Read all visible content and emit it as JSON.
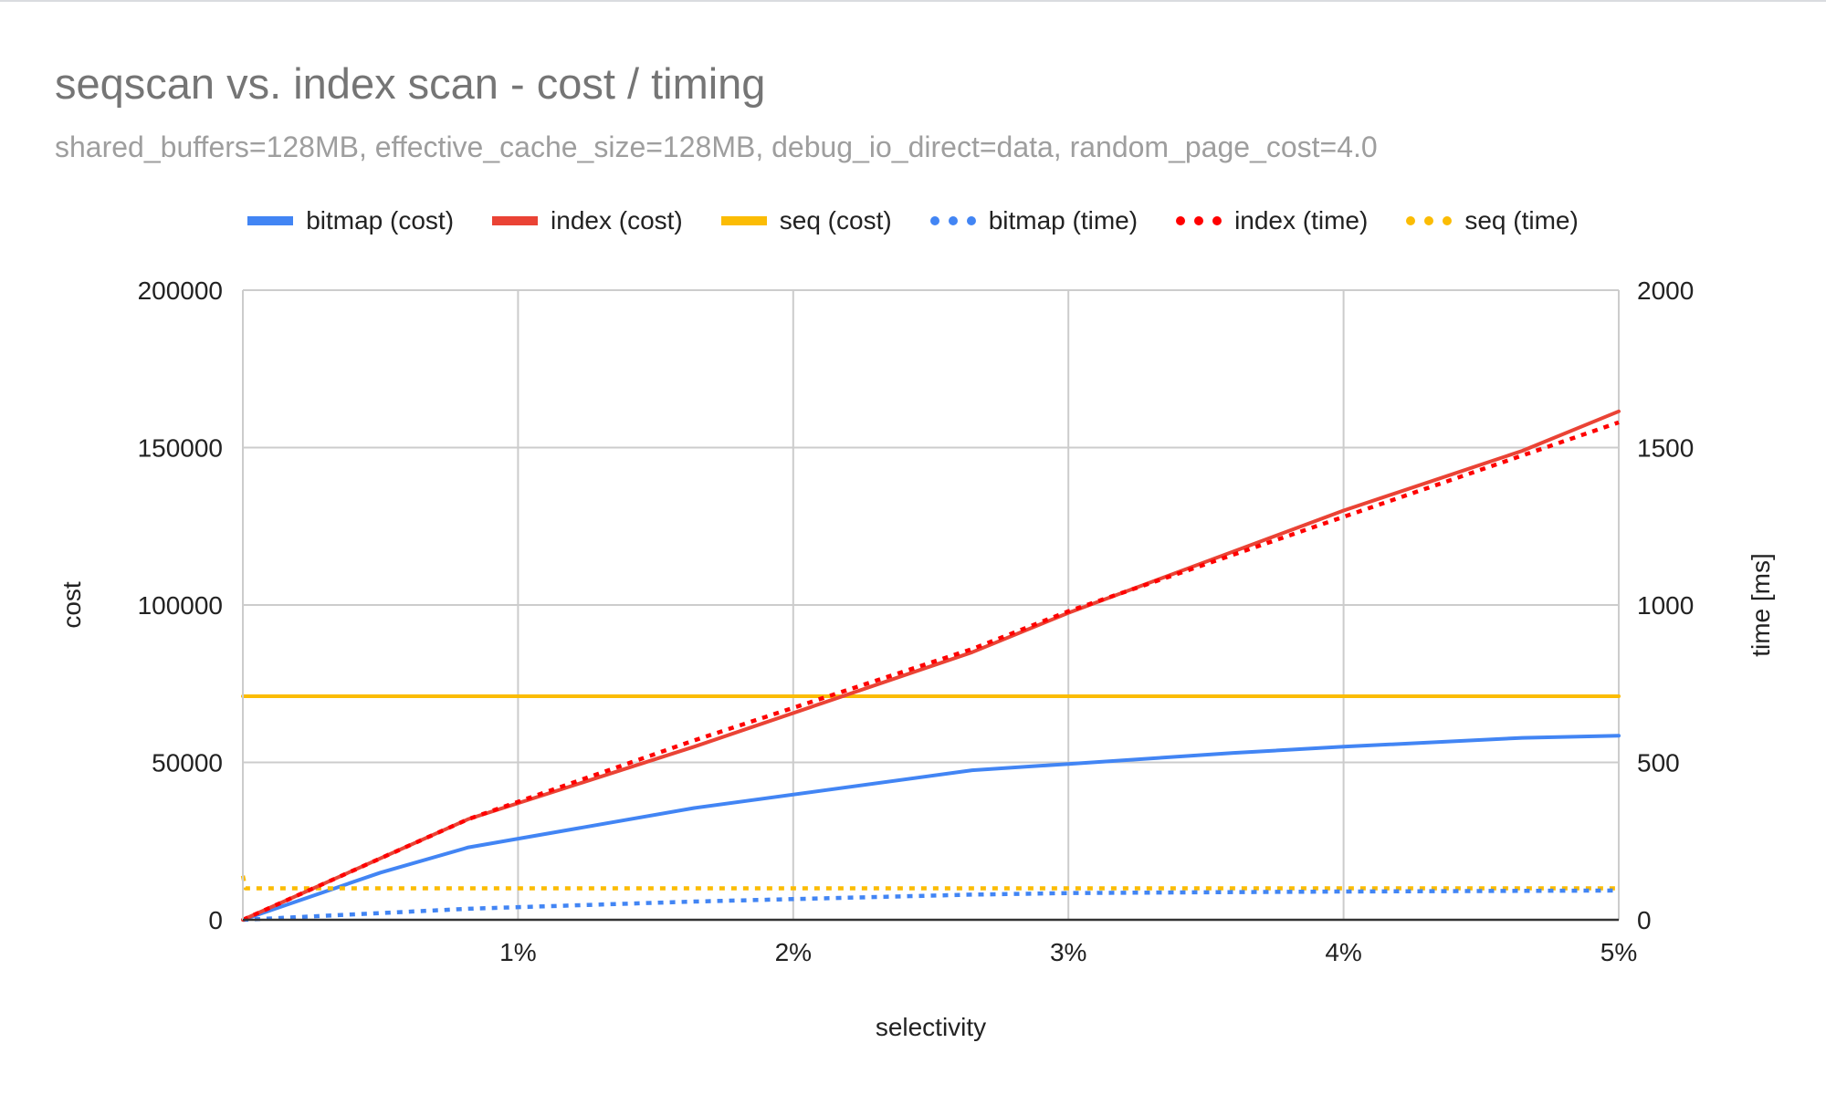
{
  "chart_data": {
    "type": "line",
    "title": "seqscan vs. index scan - cost / timing",
    "subtitle": "shared_buffers=128MB, effective_cache_size=128MB, debug_io_direct=data, random_page_cost=4.0",
    "xlabel": "selectivity",
    "ylabel": "cost",
    "y2label": "time [ms]",
    "legend_position": "top",
    "grid": true,
    "x_ticks": [
      {
        "value": 1,
        "label": "1%"
      },
      {
        "value": 2,
        "label": "2%"
      },
      {
        "value": 3,
        "label": "3%"
      },
      {
        "value": 4,
        "label": "4%"
      },
      {
        "value": 5,
        "label": "5%"
      }
    ],
    "xlim": [
      0,
      5
    ],
    "ylim": [
      0,
      200000
    ],
    "y_ticks": [
      "0",
      "50000",
      "100000",
      "150000",
      "200000"
    ],
    "y2lim": [
      0,
      2000
    ],
    "y2_ticks": [
      "0",
      "500",
      "1000",
      "1500",
      "2000"
    ],
    "series": [
      {
        "name": "bitmap (cost)",
        "axis": "left",
        "style": "solid",
        "color": "#4285f4",
        "points": [
          [
            0,
            0
          ],
          [
            0.5,
            15000
          ],
          [
            0.82,
            23000
          ],
          [
            1.64,
            35500
          ],
          [
            2.65,
            47500
          ],
          [
            3.0,
            49500
          ],
          [
            3.6,
            53000
          ],
          [
            4.0,
            55000
          ],
          [
            4.65,
            57800
          ],
          [
            5.0,
            58500
          ]
        ]
      },
      {
        "name": "index (cost)",
        "axis": "left",
        "style": "solid",
        "color": "#ea4335",
        "points": [
          [
            0,
            0
          ],
          [
            0.82,
            32000
          ],
          [
            1.64,
            55000
          ],
          [
            2.65,
            85000
          ],
          [
            3.0,
            97500
          ],
          [
            3.6,
            117000
          ],
          [
            4.0,
            130000
          ],
          [
            4.65,
            149000
          ],
          [
            5.0,
            161500
          ]
        ]
      },
      {
        "name": "seq (cost)",
        "axis": "left",
        "style": "solid",
        "color": "#fbbc04",
        "points": [
          [
            0,
            71000
          ],
          [
            5.0,
            71000
          ]
        ]
      },
      {
        "name": "bitmap (time)",
        "axis": "right",
        "style": "dotted",
        "color": "#4285f4",
        "points": [
          [
            0,
            0
          ],
          [
            0.82,
            35
          ],
          [
            1.64,
            58
          ],
          [
            2.65,
            80
          ],
          [
            3.0,
            85
          ],
          [
            4.0,
            90
          ],
          [
            5.0,
            93
          ]
        ]
      },
      {
        "name": "index (time)",
        "axis": "right",
        "style": "dotted",
        "color": "#ff0000",
        "points": [
          [
            0,
            0
          ],
          [
            0.82,
            320
          ],
          [
            1.64,
            570
          ],
          [
            2.65,
            860
          ],
          [
            3.0,
            980
          ],
          [
            4.0,
            1280
          ],
          [
            5.0,
            1580
          ]
        ]
      },
      {
        "name": "seq (time)",
        "axis": "right",
        "style": "dotted",
        "color": "#fbbc04",
        "points": [
          [
            0,
            140
          ],
          [
            0.01,
            100
          ],
          [
            5.0,
            100
          ]
        ]
      }
    ]
  }
}
